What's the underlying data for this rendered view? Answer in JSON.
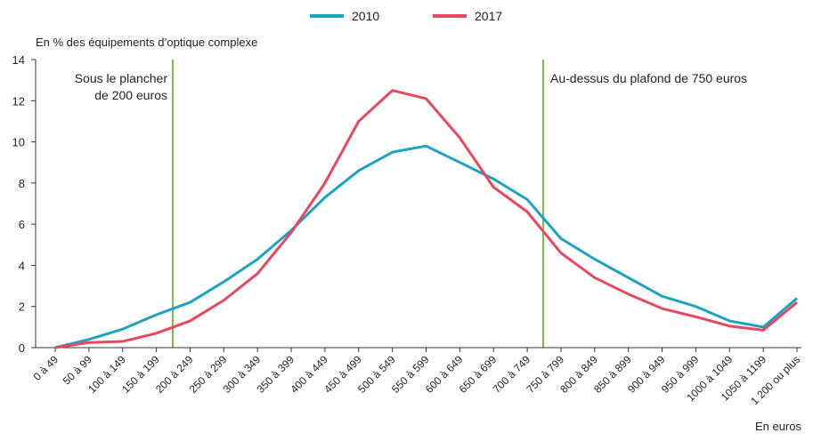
{
  "chart_data": {
    "type": "line",
    "y_label": "En % des équipements d’optique complexe",
    "x_label": "En euros",
    "categories": [
      "0 à 49",
      "50 à 99",
      "100 à 149",
      "150 à 199",
      "200 à 249",
      "250 à 299",
      "300 à 349",
      "350 à 399",
      "400 à 449",
      "450 à 499",
      "500 à 549",
      "550 à 599",
      "600 à 649",
      "650 à 699",
      "700 à 749",
      "750 à 799",
      "800 à 849",
      "850 à 899",
      "900 à 949",
      "950 à 999",
      "1000 à 1049",
      "1050 à 1199",
      "1 200 ou plus"
    ],
    "series": [
      {
        "name": "2010",
        "color": "#1ba3c1",
        "values": [
          0,
          0.4,
          0.9,
          1.6,
          2.2,
          3.2,
          4.3,
          5.7,
          7.3,
          8.6,
          9.5,
          9.8,
          9.0,
          8.2,
          7.2,
          5.3,
          4.3,
          3.4,
          2.5,
          2.0,
          1.3,
          1.0,
          2.4
        ]
      },
      {
        "name": "2017",
        "color": "#e8485e",
        "values": [
          0,
          0.25,
          0.3,
          0.7,
          1.3,
          2.3,
          3.6,
          5.6,
          8.0,
          11.0,
          12.5,
          12.1,
          10.2,
          7.8,
          6.6,
          4.6,
          3.4,
          2.6,
          1.9,
          1.5,
          1.05,
          0.85,
          2.2
        ]
      }
    ],
    "annotations": [
      {
        "lines": [
          "Sous le plancher",
          "de 200 euros"
        ]
      },
      {
        "lines": [
          "Au-dessus du plafond de 750 euros"
        ]
      }
    ],
    "ylim": [
      0,
      14
    ],
    "yticks": [
      0,
      2,
      4,
      6,
      8,
      10,
      12,
      14
    ],
    "legend": "top"
  }
}
